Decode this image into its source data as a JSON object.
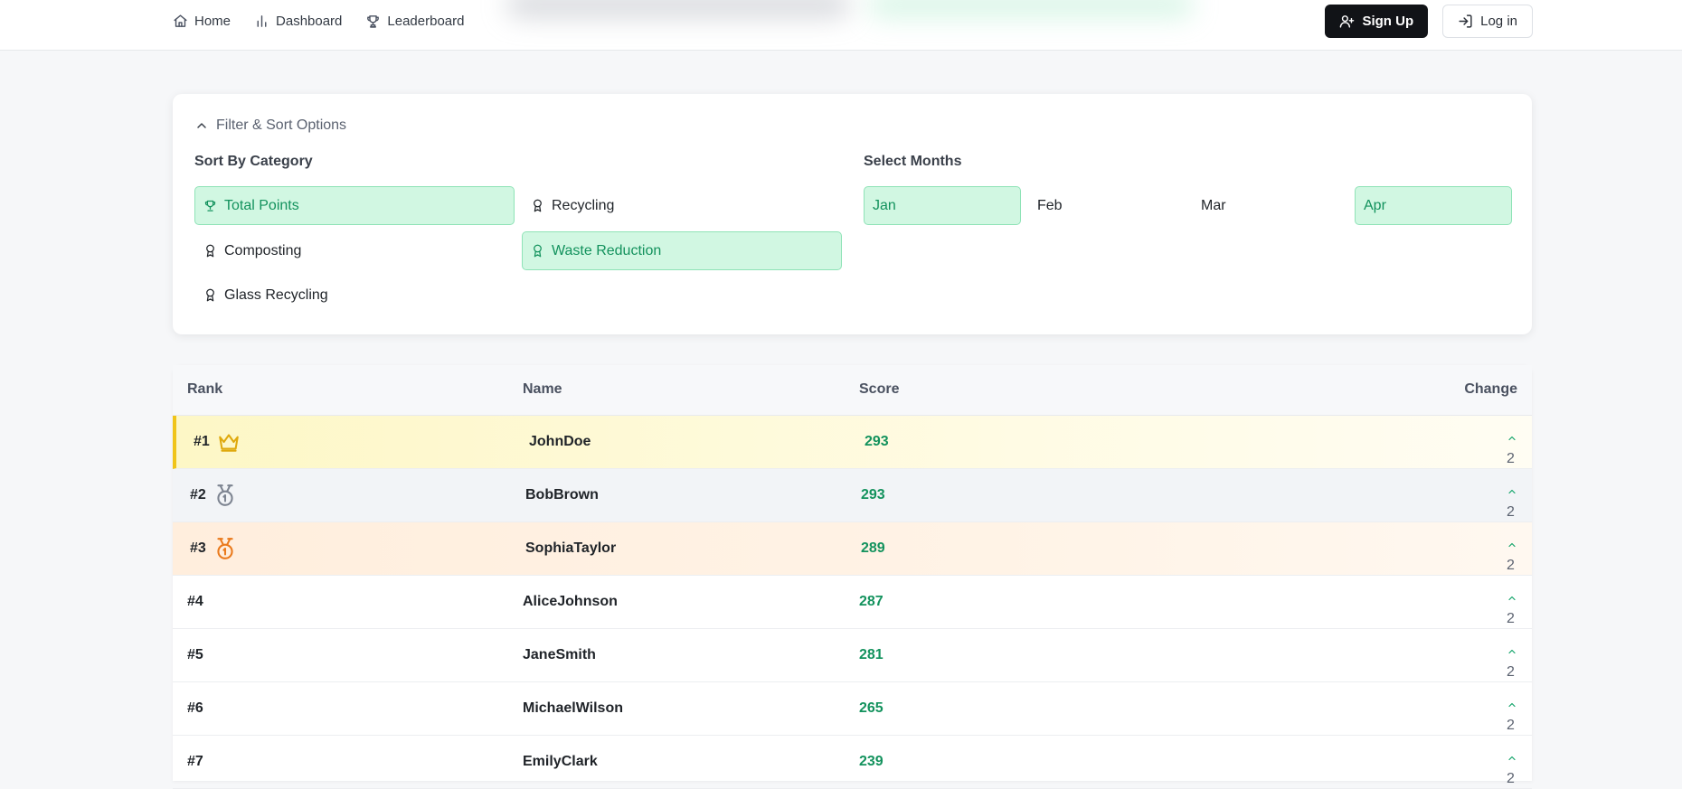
{
  "nav": {
    "items": [
      {
        "label": "Home",
        "icon": "home-icon"
      },
      {
        "label": "Dashboard",
        "icon": "bar-chart-icon"
      },
      {
        "label": "Leaderboard",
        "icon": "trophy-icon"
      }
    ],
    "signup_label": "Sign Up",
    "login_label": "Log in"
  },
  "filters": {
    "toggle_label": "Filter & Sort Options",
    "category_title": "Sort By Category",
    "categories": [
      {
        "label": "Total Points",
        "icon": "trophy-icon",
        "selected": true
      },
      {
        "label": "Recycling",
        "icon": "award-icon",
        "selected": false
      },
      {
        "label": "Composting",
        "icon": "award-icon",
        "selected": false
      },
      {
        "label": "Waste Reduction",
        "icon": "award-icon",
        "selected": true
      },
      {
        "label": "Glass Recycling",
        "icon": "award-icon",
        "selected": false
      }
    ],
    "months_title": "Select Months",
    "months": [
      {
        "label": "Jan",
        "selected": true
      },
      {
        "label": "Feb",
        "selected": false
      },
      {
        "label": "Mar",
        "selected": false
      },
      {
        "label": "Apr",
        "selected": true
      }
    ]
  },
  "table": {
    "headers": {
      "rank": "Rank",
      "name": "Name",
      "score": "Score",
      "change": "Change"
    },
    "rows": [
      {
        "rank": "#1",
        "name": "JohnDoe",
        "score": "293",
        "change": "2",
        "medal": "crown-icon"
      },
      {
        "rank": "#2",
        "name": "BobBrown",
        "score": "293",
        "change": "2",
        "medal": "silver-medal-icon"
      },
      {
        "rank": "#3",
        "name": "SophiaTaylor",
        "score": "289",
        "change": "2",
        "medal": "bronze-medal-icon"
      },
      {
        "rank": "#4",
        "name": "AliceJohnson",
        "score": "287",
        "change": "2"
      },
      {
        "rank": "#5",
        "name": "JaneSmith",
        "score": "281",
        "change": "2"
      },
      {
        "rank": "#6",
        "name": "MichaelWilson",
        "score": "265",
        "change": "2"
      },
      {
        "rank": "#7",
        "name": "EmilyClark",
        "score": "239",
        "change": "2"
      }
    ]
  },
  "colors": {
    "accent_green": "#13925d",
    "selected_bg": "#d1f7e2",
    "gold": "#f0c419",
    "bronze": "#ea7a1d"
  }
}
